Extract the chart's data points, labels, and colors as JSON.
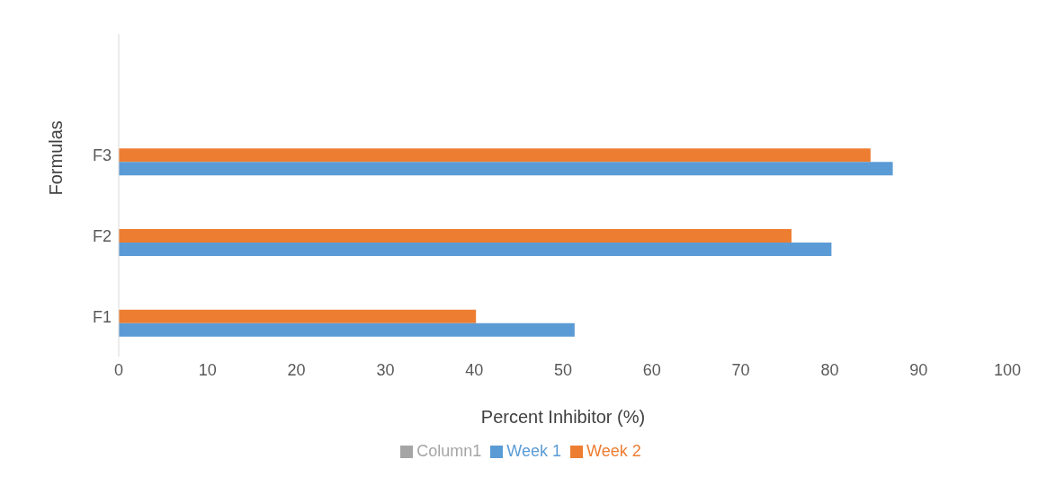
{
  "chart_data": {
    "type": "bar",
    "orientation": "horizontal",
    "xlabel": "Percent Inhibitor (%)",
    "ylabel": "Formulas",
    "categories": [
      null,
      "F3",
      "F2",
      "F1"
    ],
    "series": [
      {
        "name": "Column1",
        "color": "#a5a5a5",
        "values": [
          null,
          null,
          null,
          null
        ]
      },
      {
        "name": "Week 2",
        "color": "#ed7d31",
        "values": [
          null,
          84.6,
          75.7,
          40.2
        ]
      },
      {
        "name": "Week 1",
        "color": "#5b9bd5",
        "values": [
          null,
          87.1,
          80.2,
          51.3
        ]
      }
    ],
    "xlim": [
      0,
      100
    ],
    "xticks": [
      0,
      10,
      20,
      30,
      40,
      50,
      60,
      70,
      80,
      90,
      100
    ],
    "grid": false,
    "legend": "bottom"
  }
}
